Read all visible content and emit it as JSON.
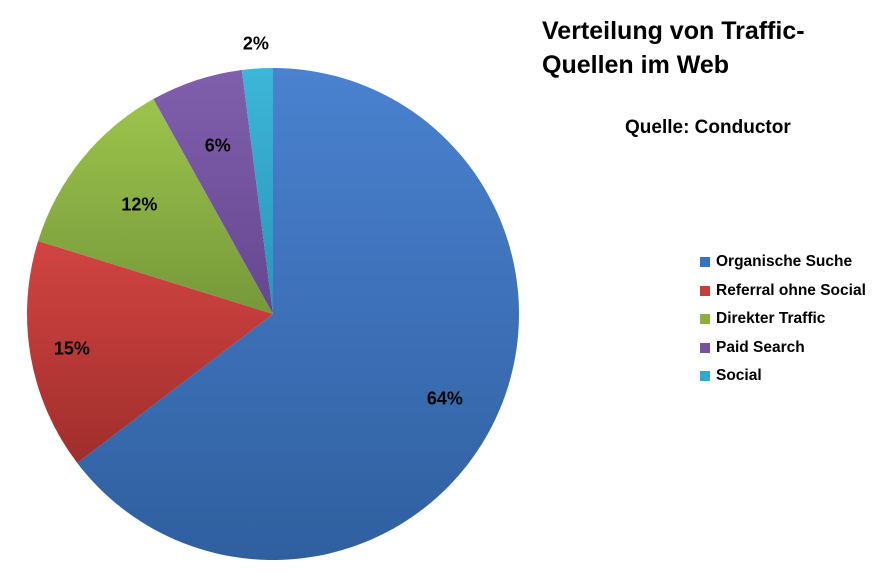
{
  "chart_data": {
    "type": "pie",
    "title": "Verteilung von Traffic-Quellen im Web",
    "title_lines": [
      "Verteilung von Traffic-",
      "Quellen im Web"
    ],
    "subtitle": "Quelle: Conductor",
    "categories": [
      "Organische Suche",
      "Referral ohne Social",
      "Direkter Traffic",
      "Paid Search",
      "Social"
    ],
    "values": [
      64,
      15,
      12,
      6,
      2
    ],
    "labels": [
      "64%",
      "15%",
      "12%",
      "6%",
      "2%"
    ],
    "colors": [
      "#3a70c0",
      "#c83c3a",
      "#8cb040",
      "#7553a2",
      "#33aacc"
    ],
    "start_angle_deg": 0,
    "direction": "clockwise",
    "legend_position": "right"
  },
  "legend": {
    "items": [
      {
        "label": "Organische Suche",
        "color": "#3a70c0"
      },
      {
        "label": "Referral ohne Social",
        "color": "#c83c3a"
      },
      {
        "label": "Direkter Traffic",
        "color": "#8cb040"
      },
      {
        "label": "Paid Search",
        "color": "#7553a2"
      },
      {
        "label": "Social",
        "color": "#33aacc"
      }
    ]
  }
}
